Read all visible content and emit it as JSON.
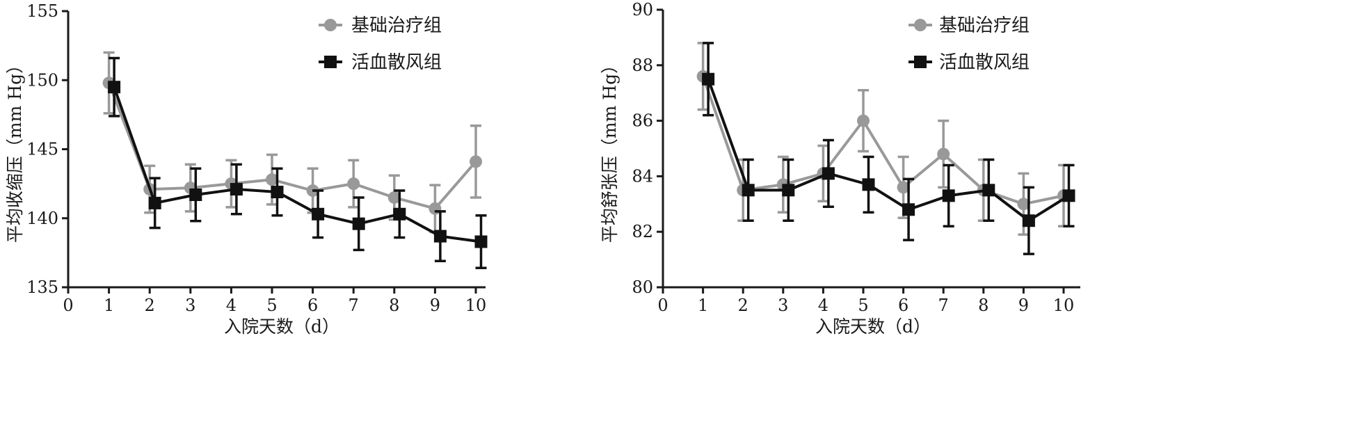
{
  "colors": {
    "basic": "#999999",
    "treat": "#111111",
    "axis": "#1a1a1a"
  },
  "chart_data": [
    {
      "type": "line",
      "xlabel": "入院天数（d）",
      "ylabel": "平均收缩压（mm Hg）",
      "xlim": [
        0,
        10
      ],
      "ylim": [
        135,
        155
      ],
      "xticks": [
        0,
        1,
        2,
        3,
        4,
        5,
        6,
        7,
        8,
        9,
        10
      ],
      "yticks": [
        135,
        140,
        145,
        150,
        155
      ],
      "legend_placement": "top-center",
      "series": [
        {
          "name": "基础治疗组",
          "marker": "circle",
          "x": [
            1,
            2,
            3,
            4,
            5,
            6,
            7,
            8,
            9,
            10
          ],
          "values": [
            149.8,
            142.1,
            142.2,
            142.5,
            142.8,
            142.0,
            142.5,
            141.5,
            140.7,
            144.1
          ],
          "error": [
            2.2,
            1.7,
            1.7,
            1.7,
            1.8,
            1.6,
            1.7,
            1.6,
            1.7,
            2.6
          ]
        },
        {
          "name": "活血散风组",
          "marker": "square",
          "x": [
            1,
            2,
            3,
            4,
            5,
            6,
            7,
            8,
            9,
            10
          ],
          "values": [
            149.5,
            141.1,
            141.7,
            142.1,
            141.9,
            140.3,
            139.6,
            140.3,
            138.7,
            138.3
          ],
          "error": [
            2.1,
            1.8,
            1.9,
            1.8,
            1.7,
            1.7,
            1.9,
            1.7,
            1.8,
            1.9
          ]
        }
      ]
    },
    {
      "type": "line",
      "xlabel": "入院天数（d）",
      "ylabel": "平均舒张压（mm Hg）",
      "xlim": [
        0,
        10
      ],
      "ylim": [
        80,
        90
      ],
      "xticks": [
        0,
        1,
        2,
        3,
        4,
        5,
        6,
        7,
        8,
        9,
        10
      ],
      "yticks": [
        80,
        82,
        84,
        86,
        88,
        90
      ],
      "legend_placement": "top-right",
      "series": [
        {
          "name": "基础治疗组",
          "marker": "circle",
          "x": [
            1,
            2,
            3,
            4,
            5,
            6,
            7,
            8,
            9,
            10
          ],
          "values": [
            87.6,
            83.5,
            83.7,
            84.1,
            86.0,
            83.6,
            84.8,
            83.5,
            83.0,
            83.3
          ],
          "error": [
            1.2,
            1.1,
            1.0,
            1.0,
            1.1,
            1.1,
            1.2,
            1.1,
            1.1,
            1.1
          ]
        },
        {
          "name": "活血散风组",
          "marker": "square",
          "x": [
            1,
            2,
            3,
            4,
            5,
            6,
            7,
            8,
            9,
            10
          ],
          "values": [
            87.5,
            83.5,
            83.5,
            84.1,
            83.7,
            82.8,
            83.3,
            83.5,
            82.4,
            83.3
          ],
          "error": [
            1.3,
            1.1,
            1.1,
            1.2,
            1.0,
            1.1,
            1.1,
            1.1,
            1.2,
            1.1
          ]
        }
      ]
    }
  ]
}
